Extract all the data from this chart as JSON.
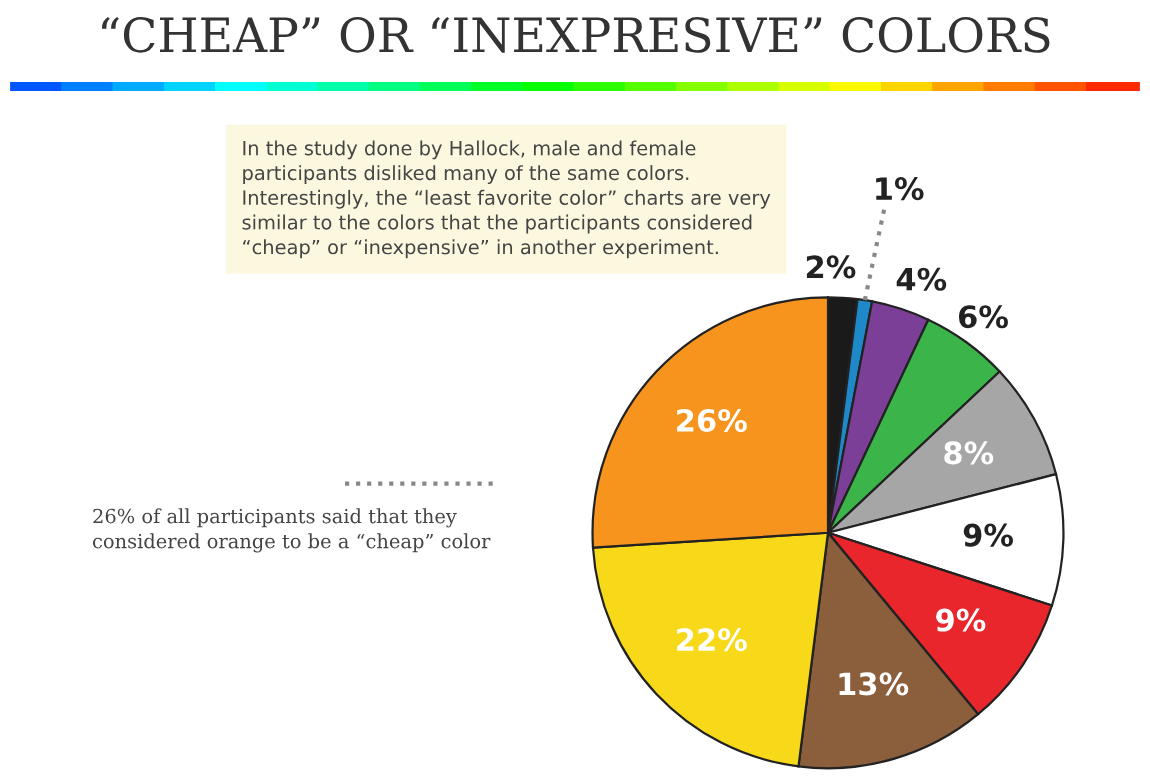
{
  "chart_data": {
    "type": "pie",
    "title": "“CHEAP” OR “INEXPRESIVE” COLORS",
    "categories": [
      null,
      null,
      null,
      null,
      null,
      null,
      null,
      null,
      null,
      null
    ],
    "values": [
      2,
      1,
      4,
      6,
      8,
      9,
      9,
      13,
      22,
      26
    ],
    "colors": [
      "#1a1a1a",
      "#1e88c8",
      "#7b3f98",
      "#3bb54a",
      "#a6a6a6",
      "#ffffff",
      "#e8262c",
      "#8b5e3c",
      "#f7d91a",
      "#f7941d"
    ],
    "value_labels": [
      "2%",
      "1%",
      "4%",
      "6%",
      "8%",
      "9%",
      "9%",
      "13%",
      "22%",
      "26%"
    ],
    "annotations": [
      "In the study done by Hallock, male and female participants disliked many of the same colors. Interestingly, the “least favorite color” charts are very similar to the colors that the participants considered “cheap” or “inexpensive” in another experiment.",
      "26% of all participants said that they considered orange to be a “cheap” color"
    ]
  }
}
